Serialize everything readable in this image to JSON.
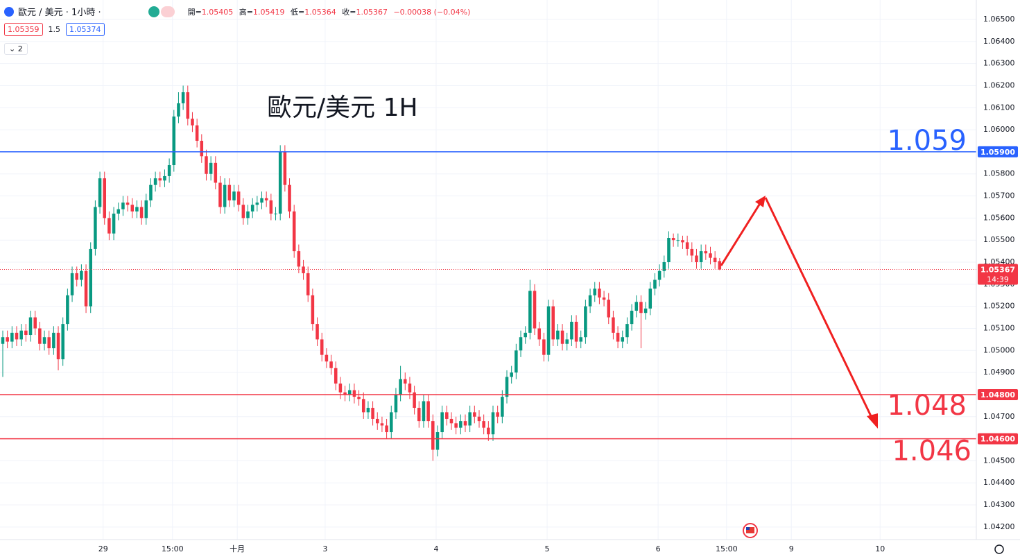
{
  "header": {
    "symbol": "歐元 / 美元 · 1小時 ·",
    "open_key": "開=",
    "open": "1.05405",
    "high_key": "高=",
    "high": "1.05419",
    "low_key": "低=",
    "low": "1.05364",
    "close_key": "收=",
    "close": "1.05367",
    "change": "−0.00038 (−0.04%)",
    "bid": "1.05359",
    "spread": "1.5",
    "ask": "1.05374",
    "indicators": "2"
  },
  "chart_data": {
    "type": "candlestick",
    "title": "歐元/美元 1H",
    "up_color": "#089981",
    "down_color": "#f23645",
    "grid": true,
    "ylim": [
      1.04143,
      1.06588
    ],
    "yticks": [
      {
        "value": 1.065,
        "label": "1.06500"
      },
      {
        "value": 1.064,
        "label": "1.06400"
      },
      {
        "value": 1.063,
        "label": "1.06300"
      },
      {
        "value": 1.062,
        "label": "1.06200"
      },
      {
        "value": 1.061,
        "label": "1.06100"
      },
      {
        "value": 1.06,
        "label": "1.06000"
      },
      {
        "value": 1.059,
        "label": "1.05900"
      },
      {
        "value": 1.058,
        "label": "1.05800"
      },
      {
        "value": 1.057,
        "label": "1.05700"
      },
      {
        "value": 1.056,
        "label": "1.05600"
      },
      {
        "value": 1.055,
        "label": "1.05500"
      },
      {
        "value": 1.054,
        "label": "1.05400"
      },
      {
        "value": 1.053,
        "label": "1.05300"
      },
      {
        "value": 1.052,
        "label": "1.05200"
      },
      {
        "value": 1.051,
        "label": "1.05100"
      },
      {
        "value": 1.05,
        "label": "1.05000"
      },
      {
        "value": 1.049,
        "label": "1.04900"
      },
      {
        "value": 1.048,
        "label": "1.04800"
      },
      {
        "value": 1.047,
        "label": "1.04700"
      },
      {
        "value": 1.046,
        "label": "1.04600"
      },
      {
        "value": 1.045,
        "label": "1.04500"
      },
      {
        "value": 1.044,
        "label": "1.04400"
      },
      {
        "value": 1.043,
        "label": "1.04300"
      },
      {
        "value": 1.042,
        "label": "1.04200"
      }
    ],
    "xlim": [
      -0.6,
      210.5
    ],
    "xticks": [
      {
        "value": 21.7,
        "label": "29"
      },
      {
        "value": 36.7,
        "label": "15:00"
      },
      {
        "value": 50.7,
        "label": "十月"
      },
      {
        "value": 69.7,
        "label": "3"
      },
      {
        "value": 93.7,
        "label": "4"
      },
      {
        "value": 117.7,
        "label": "5"
      },
      {
        "value": 141.7,
        "label": "6"
      },
      {
        "value": 156.5,
        "label": "15:00"
      },
      {
        "value": 170.5,
        "label": "9"
      },
      {
        "value": 189.7,
        "label": "10"
      }
    ],
    "open": [
      1.0503,
      1.0506,
      1.0504,
      1.0508,
      1.0505,
      1.0509,
      1.0507,
      1.0515,
      1.051,
      1.0503,
      1.0506,
      1.0501,
      1.0508,
      1.0496,
      1.0512,
      1.0525,
      1.0535,
      1.0532,
      1.0536,
      1.052,
      1.0546,
      1.0565,
      1.0578,
      1.056,
      1.0553,
      1.0562,
      1.0564,
      1.0567,
      1.0566,
      1.0563,
      1.0565,
      1.056,
      1.0568,
      1.0575,
      1.0578,
      1.0577,
      1.0579,
      1.0584,
      1.0606,
      1.0612,
      1.0617,
      1.0605,
      1.0602,
      1.0595,
      1.0588,
      1.058,
      1.0585,
      1.0576,
      1.0565,
      1.0575,
      1.0568,
      1.0572,
      1.0566,
      1.056,
      1.0563,
      1.0566,
      1.0567,
      1.0569,
      1.0568,
      1.0562,
      1.0562,
      1.059,
      1.0575,
      1.0563,
      1.0545,
      1.0538,
      1.0535,
      1.0525,
      1.0512,
      1.0505,
      1.0498,
      1.0495,
      1.0492,
      1.0485,
      1.0481,
      1.048,
      1.0482,
      1.0479,
      1.0478,
      1.0472,
      1.0474,
      1.0469,
      1.0467,
      1.0466,
      1.0463,
      1.0472,
      1.048,
      1.0487,
      1.0485,
      1.0481,
      1.0474,
      1.0468,
      1.0477,
      1.0468,
      1.0455,
      1.0463,
      1.0472,
      1.0469,
      1.0467,
      1.0465,
      1.0468,
      1.0466,
      1.0472,
      1.047,
      1.0468,
      1.0465,
      1.0462,
      1.0472,
      1.047,
      1.0479,
      1.0488,
      1.049,
      1.05,
      1.0506,
      1.0508,
      1.0527,
      1.051,
      1.0505,
      1.0498,
      1.052,
      1.0505,
      1.0509,
      1.0503,
      1.0505,
      1.0513,
      1.0504,
      1.0506,
      1.052,
      1.0525,
      1.0528,
      1.0524,
      1.0523,
      1.0515,
      1.0508,
      1.0504,
      1.0506,
      1.0512,
      1.0518,
      1.0522,
      1.0517,
      1.0519,
      1.0528,
      1.0532,
      1.0536,
      1.054,
      1.0551,
      1.055,
      1.055,
      1.0549,
      1.0546,
      1.0543,
      1.054,
      1.0545,
      1.0544,
      1.0542,
      1.05405
    ],
    "high": [
      1.0509,
      1.0509,
      1.0511,
      1.0511,
      1.0512,
      1.0512,
      1.0518,
      1.0518,
      1.0513,
      1.0509,
      1.0509,
      1.0511,
      1.0511,
      1.0515,
      1.0528,
      1.0538,
      1.0538,
      1.0539,
      1.0539,
      1.0549,
      1.0568,
      1.0581,
      1.0581,
      1.0563,
      1.0565,
      1.0567,
      1.057,
      1.057,
      1.0569,
      1.0568,
      1.0568,
      1.0571,
      1.0578,
      1.0581,
      1.0581,
      1.0582,
      1.0587,
      1.0609,
      1.0617,
      1.062,
      1.062,
      1.0608,
      1.0605,
      1.0598,
      1.0591,
      1.0588,
      1.0588,
      1.0579,
      1.0578,
      1.0578,
      1.0575,
      1.0575,
      1.0569,
      1.0566,
      1.0569,
      1.057,
      1.0572,
      1.0572,
      1.0571,
      1.0565,
      1.0593,
      1.0593,
      1.0578,
      1.0566,
      1.0548,
      1.0541,
      1.0538,
      1.0528,
      1.0515,
      1.0508,
      1.0501,
      1.0498,
      1.0495,
      1.0488,
      1.0484,
      1.0485,
      1.0485,
      1.0482,
      1.0481,
      1.0477,
      1.0477,
      1.0472,
      1.047,
      1.0469,
      1.0475,
      1.0483,
      1.0493,
      1.049,
      1.0488,
      1.0484,
      1.0477,
      1.048,
      1.048,
      1.0471,
      1.0466,
      1.0475,
      1.0475,
      1.0472,
      1.047,
      1.0471,
      1.0471,
      1.0475,
      1.0475,
      1.0473,
      1.0471,
      1.0468,
      1.0475,
      1.0475,
      1.0482,
      1.0491,
      1.0493,
      1.0503,
      1.0509,
      1.0511,
      1.0532,
      1.053,
      1.0513,
      1.0508,
      1.0523,
      1.0523,
      1.0512,
      1.0512,
      1.0508,
      1.0516,
      1.0516,
      1.0509,
      1.0523,
      1.0528,
      1.0531,
      1.0531,
      1.0527,
      1.0526,
      1.0518,
      1.0511,
      1.0509,
      1.0515,
      1.0521,
      1.0525,
      1.0525,
      1.0522,
      1.0531,
      1.0535,
      1.0539,
      1.0543,
      1.0554,
      1.0553,
      1.0553,
      1.0552,
      1.0552,
      1.0549,
      1.0546,
      1.0548,
      1.0548,
      1.0547,
      1.0545,
      1.05419
    ],
    "low": [
      1.0488,
      1.0501,
      1.0501,
      1.0502,
      1.0502,
      1.0504,
      1.0504,
      1.0507,
      1.05,
      1.05,
      1.0498,
      1.0498,
      1.0491,
      1.0493,
      1.0509,
      1.0522,
      1.0529,
      1.0529,
      1.0517,
      1.0517,
      1.0543,
      1.0562,
      1.0557,
      1.055,
      1.055,
      1.0559,
      1.0561,
      1.0563,
      1.056,
      1.056,
      1.0557,
      1.0557,
      1.0565,
      1.0572,
      1.0574,
      1.0574,
      1.0576,
      1.0581,
      1.0603,
      1.0609,
      1.0602,
      1.0599,
      1.0592,
      1.0585,
      1.0577,
      1.0577,
      1.0573,
      1.0562,
      1.0562,
      1.0565,
      1.0565,
      1.0563,
      1.0557,
      1.0557,
      1.056,
      1.0563,
      1.0564,
      1.0565,
      1.0559,
      1.0559,
      1.0559,
      1.0572,
      1.056,
      1.0542,
      1.0535,
      1.0532,
      1.0522,
      1.0509,
      1.0502,
      1.0495,
      1.0492,
      1.0489,
      1.0482,
      1.0478,
      1.0477,
      1.0477,
      1.0476,
      1.0475,
      1.0469,
      1.0469,
      1.0466,
      1.0464,
      1.0463,
      1.046,
      1.046,
      1.0469,
      1.0477,
      1.0482,
      1.0478,
      1.0471,
      1.0465,
      1.0465,
      1.0465,
      1.045,
      1.0452,
      1.046,
      1.0466,
      1.0464,
      1.0462,
      1.0462,
      1.0463,
      1.0463,
      1.0467,
      1.0465,
      1.0462,
      1.0459,
      1.0459,
      1.0467,
      1.0467,
      1.0476,
      1.0485,
      1.0487,
      1.0497,
      1.0503,
      1.0505,
      1.0507,
      1.0502,
      1.0495,
      1.0495,
      1.0502,
      1.0502,
      1.05,
      1.05,
      1.0502,
      1.0501,
      1.0501,
      1.0503,
      1.0517,
      1.0522,
      1.0521,
      1.052,
      1.0512,
      1.0505,
      1.0501,
      1.0501,
      1.0503,
      1.0509,
      1.0515,
      1.0501,
      1.0514,
      1.0516,
      1.0525,
      1.0529,
      1.0533,
      1.0537,
      1.0547,
      1.0547,
      1.0546,
      1.0543,
      1.054,
      1.0537,
      1.0537,
      1.0541,
      1.0539,
      1.0537,
      1.05364
    ],
    "close": [
      1.0506,
      1.0504,
      1.0508,
      1.0505,
      1.0509,
      1.0507,
      1.0515,
      1.051,
      1.0503,
      1.0506,
      1.0501,
      1.0508,
      1.0496,
      1.0512,
      1.0525,
      1.0535,
      1.0532,
      1.0536,
      1.052,
      1.0546,
      1.0565,
      1.0578,
      1.056,
      1.0553,
      1.0562,
      1.0564,
      1.0567,
      1.0566,
      1.0563,
      1.0565,
      1.056,
      1.0568,
      1.0575,
      1.0578,
      1.0577,
      1.0579,
      1.0584,
      1.0606,
      1.0612,
      1.0617,
      1.0605,
      1.0602,
      1.0595,
      1.0588,
      1.058,
      1.0585,
      1.0576,
      1.0565,
      1.0575,
      1.0568,
      1.0572,
      1.0566,
      1.056,
      1.0563,
      1.0566,
      1.0567,
      1.0569,
      1.0568,
      1.0562,
      1.0562,
      1.059,
      1.0575,
      1.0563,
      1.0545,
      1.0538,
      1.0535,
      1.0525,
      1.0512,
      1.0505,
      1.0498,
      1.0495,
      1.0492,
      1.0485,
      1.0481,
      1.048,
      1.0482,
      1.0479,
      1.0478,
      1.0472,
      1.0474,
      1.0469,
      1.0467,
      1.0466,
      1.0463,
      1.0472,
      1.048,
      1.0487,
      1.0485,
      1.0481,
      1.0474,
      1.0468,
      1.0477,
      1.0468,
      1.0455,
      1.0463,
      1.0472,
      1.0469,
      1.0467,
      1.0465,
      1.0468,
      1.0466,
      1.0472,
      1.047,
      1.0468,
      1.0465,
      1.0462,
      1.0472,
      1.047,
      1.0479,
      1.0488,
      1.049,
      1.05,
      1.0506,
      1.0508,
      1.0527,
      1.051,
      1.0505,
      1.0498,
      1.052,
      1.0505,
      1.0509,
      1.0503,
      1.0505,
      1.0513,
      1.0504,
      1.0506,
      1.052,
      1.0525,
      1.0528,
      1.0524,
      1.0523,
      1.0515,
      1.0508,
      1.0504,
      1.0506,
      1.0512,
      1.0518,
      1.0522,
      1.0517,
      1.0519,
      1.0528,
      1.0532,
      1.0536,
      1.054,
      1.0551,
      1.055,
      1.055,
      1.0549,
      1.0546,
      1.0543,
      1.054,
      1.0545,
      1.0544,
      1.0542,
      1.054,
      1.05367
    ],
    "hlines": [
      {
        "value": 1.059,
        "label": "1.05900",
        "annotation": "1.059",
        "color": "#2962ff"
      },
      {
        "value": 1.048,
        "label": "1.04800",
        "annotation": "1.048",
        "color": "#f23645"
      },
      {
        "value": 1.046,
        "label": "1.04600",
        "annotation": "1.046",
        "color": "#f23645"
      }
    ],
    "current_price": {
      "value": 1.05367,
      "label": "1.05367",
      "countdown": "14:39",
      "color": "#f23645"
    }
  }
}
